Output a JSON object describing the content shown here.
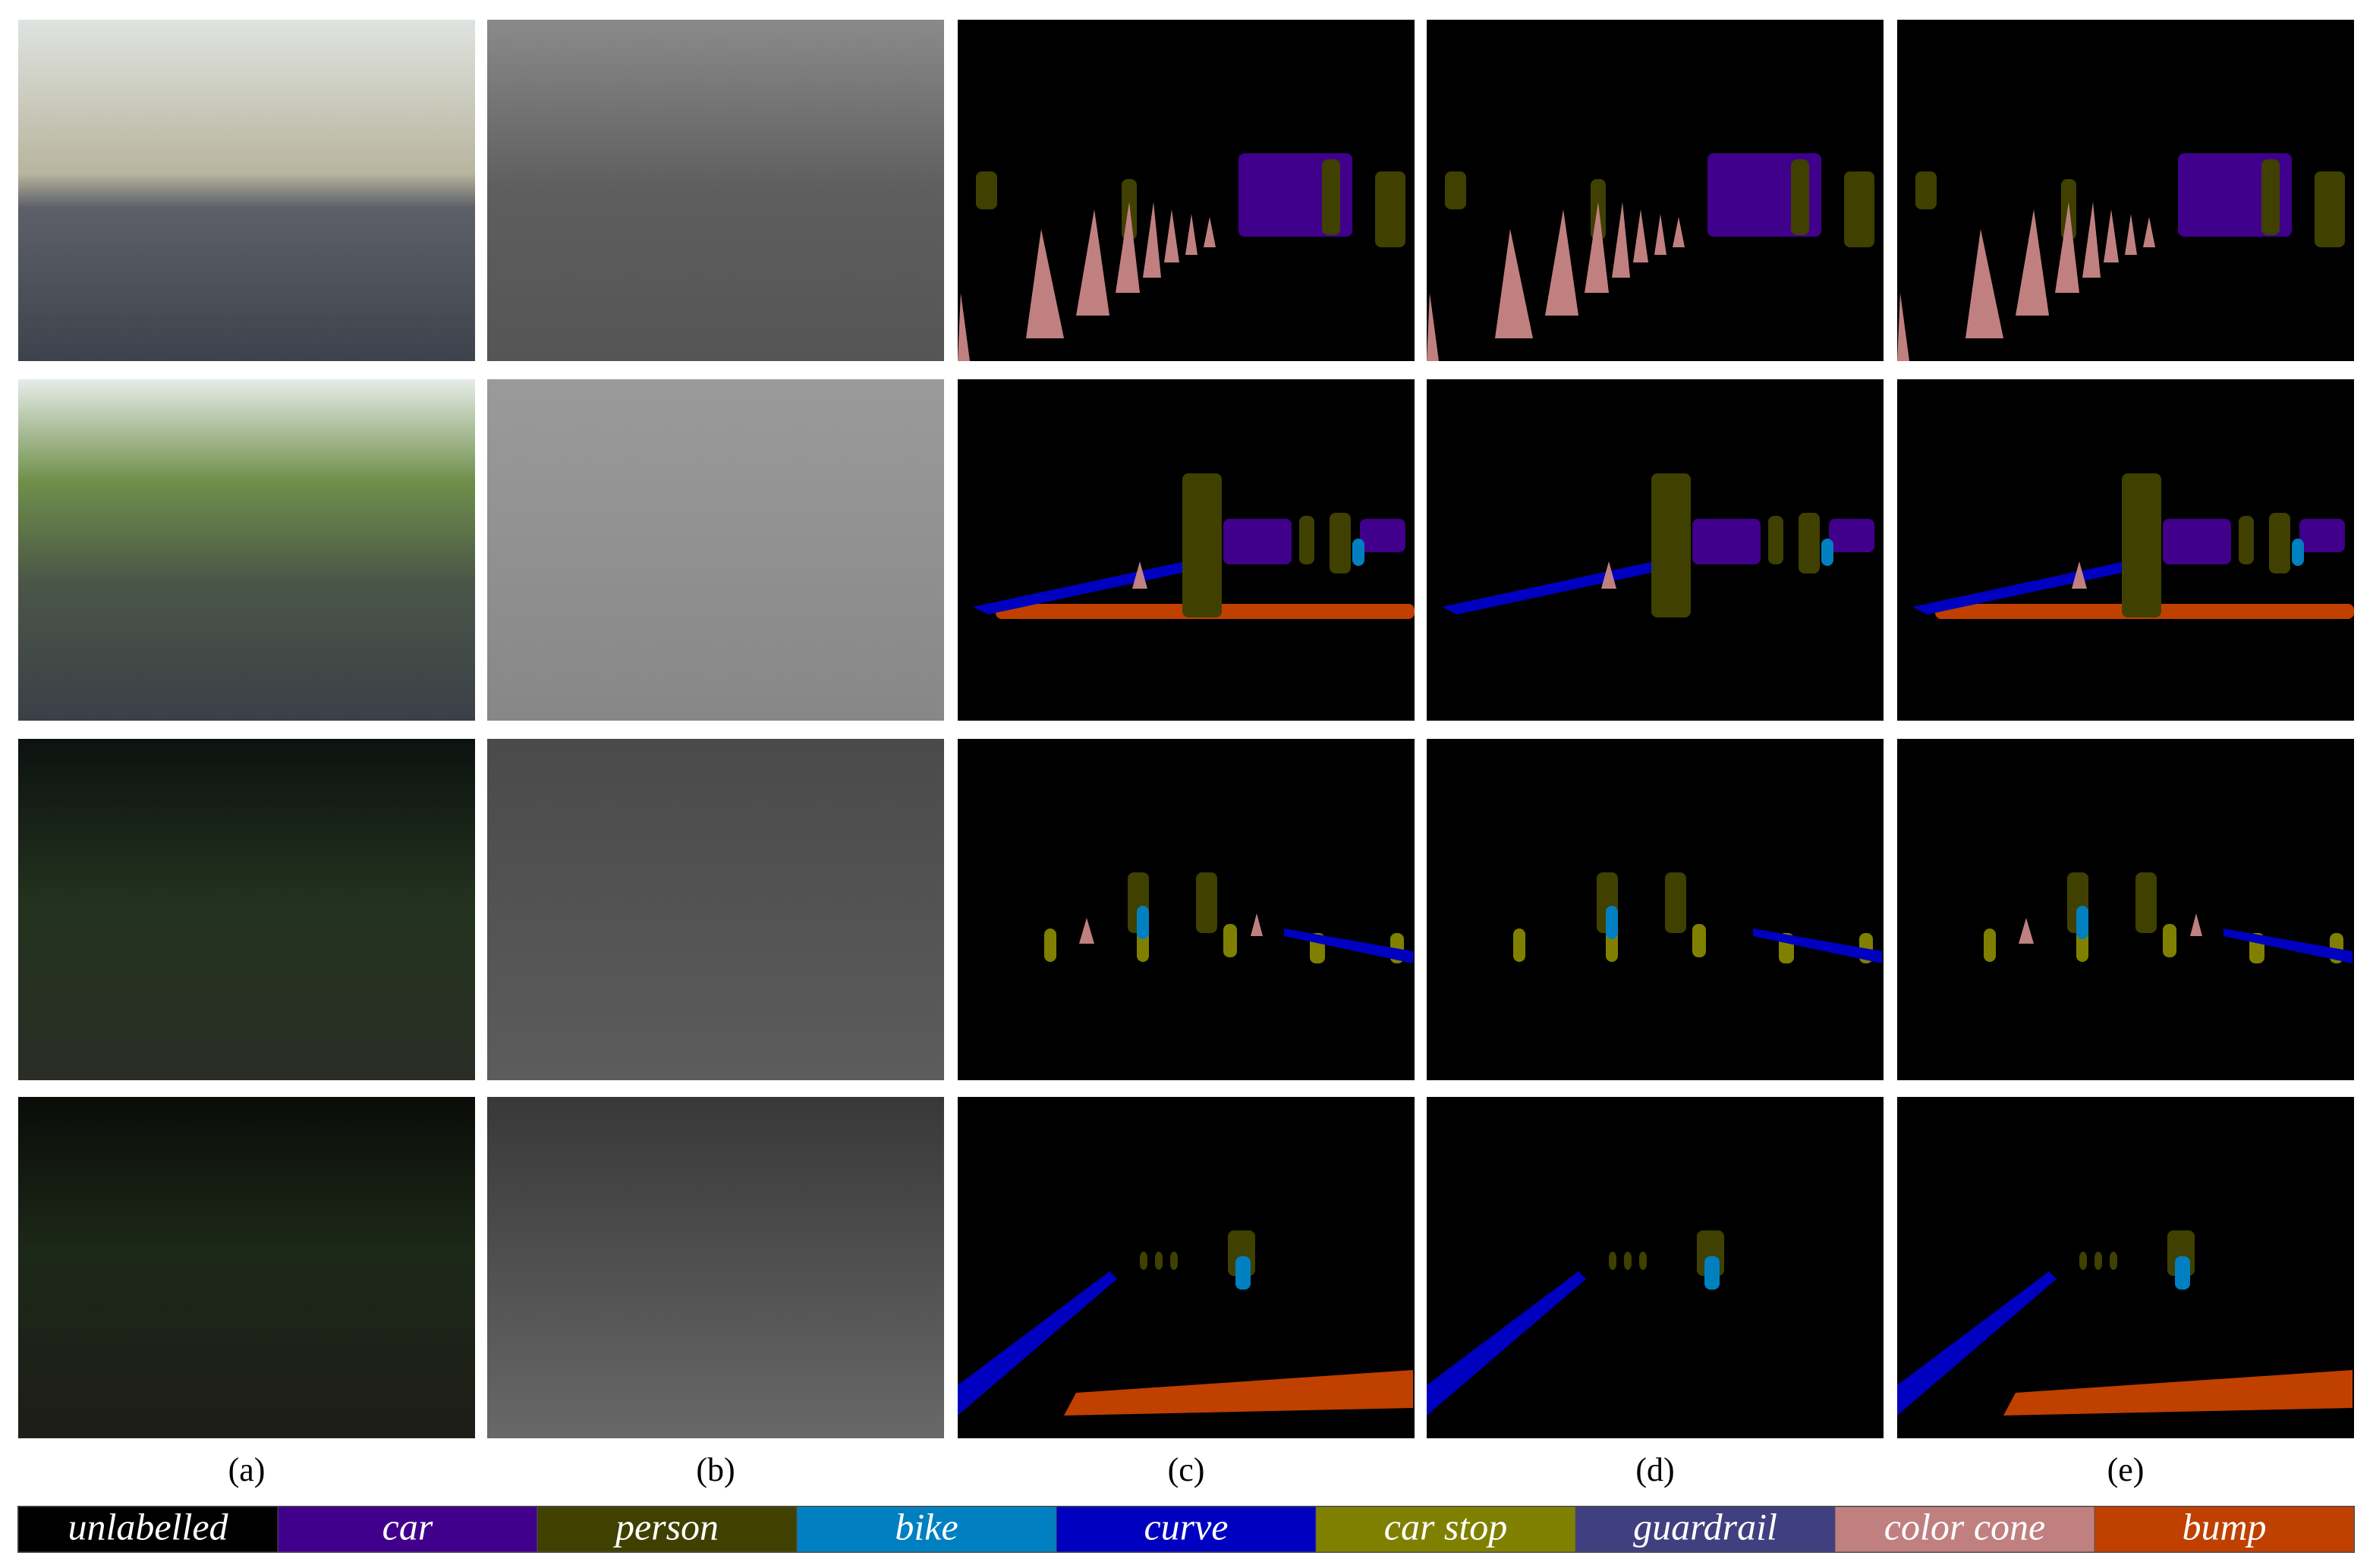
{
  "figure": {
    "panel_labels": [
      "(a)",
      "(b)",
      "(c)",
      "(d)",
      "(e)"
    ],
    "legend": [
      {
        "name": "unlabelled",
        "color": "#000000"
      },
      {
        "name": "car",
        "color": "#40008c"
      },
      {
        "name": "person",
        "color": "#404000"
      },
      {
        "name": "bike",
        "color": "#0080c0"
      },
      {
        "name": "curve",
        "color": "#0000c0"
      },
      {
        "name": "car stop",
        "color": "#808000"
      },
      {
        "name": "guardrail",
        "color": "#404080"
      },
      {
        "name": "color cone",
        "color": "#c08080"
      },
      {
        "name": "bump",
        "color": "#c04000"
      }
    ]
  }
}
